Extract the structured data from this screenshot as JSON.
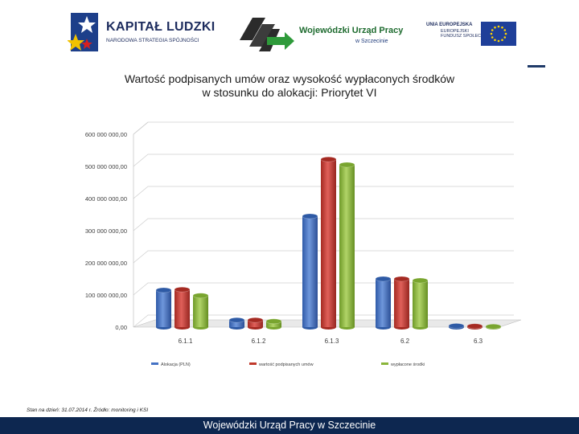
{
  "header": {
    "logo_kapital_title": "KAPITAŁ LUDZKI",
    "logo_kapital_subtitle": "NARODOWA STRATEGIA SPÓJNOŚCI",
    "logo_wup_title": "Wojewódzki Urząd Pracy",
    "logo_wup_subtitle": "w Szczecinie",
    "logo_ue_line1": "UNIA EUROPEJSKA",
    "logo_ue_line2": "EUROPEJSKI",
    "logo_ue_line3": "FUNDUSZ SPOŁECZNY"
  },
  "title_line1": "Wartość podpisanych umów oraz wysokość wypłaconych środków",
  "title_line2": "w stosunku do alokacji: Priorytet VI",
  "note": "Stan na dzień: 31.07.2014 r. Źródło: monitoring i KSI",
  "footer_text": "Wojewódzki Urząd Pracy w Szczecinie",
  "colors": {
    "blue": "#4472c4",
    "red": "#c0392b",
    "green": "#8ab53a",
    "footer": "#0d2750"
  },
  "chart_data": {
    "type": "bar",
    "categories": [
      "6.1.1",
      "6.1.2",
      "6.1.3",
      "6.2",
      "6.3"
    ],
    "series": [
      {
        "name": "Alokacja (PLN)",
        "values": [
          115000000,
          22000000,
          345000000,
          150000000,
          4000000
        ]
      },
      {
        "name": "wartość podpisanych umów",
        "values": [
          117000000,
          22000000,
          522000000,
          150000000,
          3000000
        ]
      },
      {
        "name": "wypłacone środki",
        "values": [
          98000000,
          18000000,
          505000000,
          145000000,
          2000000
        ]
      }
    ],
    "yticks": [
      "0,00",
      "100 000 000,00",
      "200 000 000,00",
      "300 000 000,00",
      "400 000 000,00",
      "500 000 000,00",
      "600 000 000,00"
    ],
    "ylim": [
      0,
      600000000
    ],
    "grid": true,
    "legend": "bottom"
  }
}
